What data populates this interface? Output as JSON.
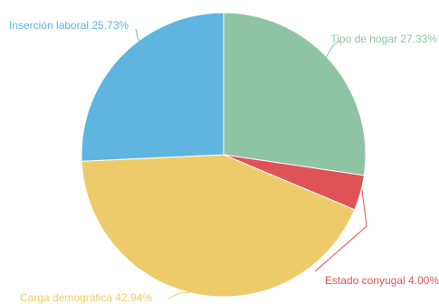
{
  "chart_data": {
    "type": "pie",
    "title": "",
    "slices": [
      {
        "label": "Tipo de hogar 27.33%",
        "name": "Tipo de hogar",
        "value": 27.33,
        "color": "#8ec4a4"
      },
      {
        "label": "Estado conyugal 4.00%",
        "name": "Estado conyugal",
        "value": 4.0,
        "color": "#df5356"
      },
      {
        "label": "Carga demográfica 42.94%",
        "name": "Carga demográfica",
        "value": 42.94,
        "color": "#eecb6a"
      },
      {
        "label": "Inserción laboral 25.73%",
        "name": "Inserción laboral",
        "value": 25.73,
        "color": "#5fb4e0"
      }
    ],
    "start_angle_deg": 0,
    "direction": "clockwise",
    "legend": "none",
    "labels": "outside-with-leader-lines"
  }
}
